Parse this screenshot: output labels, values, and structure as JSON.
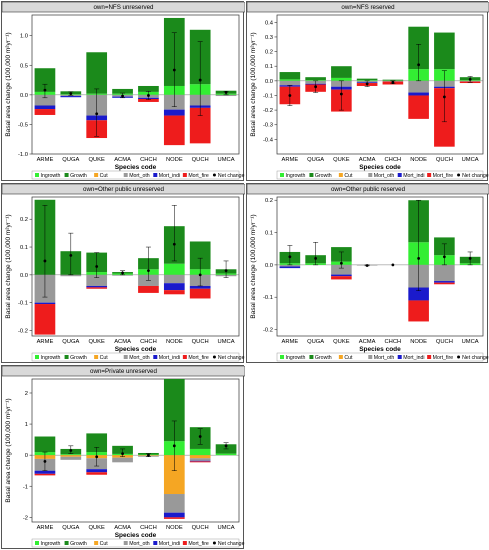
{
  "colors": {
    "Ingrowth": "#33ee33",
    "Growth": "#1b8a1b",
    "Cut": "#f5a623",
    "Mort_oth": "#999999",
    "Mort_indi": "#1a1acc",
    "Mort_fire": "#ee1c1c",
    "net": "#000000"
  },
  "chart_data": [
    {
      "type": "bar",
      "title": "own=NFS unreserved",
      "ylabel": "Basal area change (100,000 m²yr⁻¹)",
      "xlabel": "Species code",
      "ylim": [
        -1.0,
        1.35
      ],
      "yticks": [
        -1.0,
        -0.5,
        0.0,
        0.5,
        1.0
      ],
      "yticklabels": [
        "-1.0",
        "-0.5",
        "0.0",
        "0.5",
        "1.0"
      ],
      "categories": [
        "ARME",
        "QUGA",
        "QUKE",
        "ACMA",
        "CHCH",
        "NODE",
        "QUCH",
        "UMCA"
      ],
      "series": [
        {
          "name": "Ingrowth",
          "values": [
            0.05,
            0.01,
            0.02,
            0.02,
            0.05,
            0.15,
            0.18,
            0.02
          ]
        },
        {
          "name": "Growth",
          "values": [
            0.4,
            0.05,
            0.7,
            0.08,
            0.1,
            1.15,
            0.92,
            0.05
          ]
        },
        {
          "name": "Cut",
          "values": [
            0,
            0,
            0,
            0,
            0,
            0,
            0,
            0
          ]
        },
        {
          "name": "Mort_oth",
          "values": [
            -0.18,
            -0.02,
            -0.35,
            -0.03,
            -0.05,
            -0.25,
            -0.18,
            -0.02
          ]
        },
        {
          "name": "Mort_indi",
          "values": [
            -0.06,
            -0.02,
            -0.08,
            -0.02,
            -0.02,
            -0.1,
            -0.04,
            0
          ]
        },
        {
          "name": "Mort_fire",
          "values": [
            -0.1,
            0,
            -0.3,
            0,
            -0.05,
            -0.5,
            -0.6,
            0
          ]
        }
      ],
      "net": [
        0.08,
        0.02,
        -0.32,
        -0.02,
        -0.01,
        0.42,
        0.25,
        0.04
      ],
      "err": [
        [
          -0.05,
          0.18
        ],
        [
          -0.01,
          0.05
        ],
        [
          -0.7,
          0.1
        ],
        [
          -0.05,
          0.03
        ],
        [
          -0.08,
          0.06
        ],
        [
          -0.2,
          1.05
        ],
        [
          -0.35,
          0.9
        ],
        [
          0.0,
          0.06
        ]
      ]
    },
    {
      "type": "bar",
      "title": "own=NFS reserved",
      "ylabel": "Basal area change (100,000 m²yr⁻¹)",
      "xlabel": "Species code",
      "ylim": [
        -0.5,
        0.45
      ],
      "yticks": [
        -0.4,
        -0.3,
        -0.2,
        -0.1,
        0.0,
        0.1,
        0.2,
        0.3,
        0.4
      ],
      "yticklabels": [
        "-0.4",
        "-0.3",
        "-0.2",
        "-0.1",
        "0.0",
        "0.1",
        "0.2",
        "0.3",
        "0.4"
      ],
      "categories": [
        "ARME",
        "QUGA",
        "QUKE",
        "ACMA",
        "CHCH",
        "NODE",
        "QUCH",
        "UMCA"
      ],
      "series": [
        {
          "name": "Ingrowth",
          "values": [
            0.01,
            0.005,
            0.02,
            0.005,
            0.003,
            0.08,
            0.08,
            0.005
          ]
        },
        {
          "name": "Growth",
          "values": [
            0.05,
            0.02,
            0.08,
            0.01,
            0.005,
            0.29,
            0.25,
            0.02
          ]
        },
        {
          "name": "Cut",
          "values": [
            0,
            0,
            0,
            0,
            0,
            0,
            0,
            0
          ]
        },
        {
          "name": "Mort_oth",
          "values": [
            -0.03,
            -0.02,
            -0.04,
            -0.01,
            -0.005,
            -0.08,
            -0.04,
            -0.005
          ]
        },
        {
          "name": "Mort_indi",
          "values": [
            -0.01,
            -0.005,
            -0.02,
            -0.005,
            0,
            -0.02,
            -0.01,
            0
          ]
        },
        {
          "name": "Mort_fire",
          "values": [
            -0.12,
            -0.05,
            -0.15,
            -0.02,
            -0.02,
            -0.16,
            -0.4,
            -0.01
          ]
        }
      ],
      "net": [
        -0.1,
        -0.04,
        -0.09,
        -0.02,
        -0.01,
        0.11,
        -0.11,
        0.01
      ],
      "err": [
        [
          -0.17,
          -0.03
        ],
        [
          -0.08,
          0.0
        ],
        [
          -0.2,
          0.0
        ],
        [
          -0.04,
          0.0
        ],
        [
          -0.02,
          0.0
        ],
        [
          0.0,
          0.25
        ],
        [
          -0.28,
          0.07
        ],
        [
          -0.01,
          0.03
        ]
      ]
    },
    {
      "type": "bar",
      "title": "own=Other public unreserved",
      "ylabel": "Basal area change (100,000 m²yr⁻¹)",
      "xlabel": "Species code",
      "ylim": [
        -0.22,
        0.28
      ],
      "yticks": [
        -0.2,
        -0.1,
        0.0,
        0.1,
        0.2
      ],
      "yticklabels": [
        "-0.2",
        "-0.1",
        "0.0",
        "0.1",
        "0.2"
      ],
      "categories": [
        "ARME",
        "QUGA",
        "QUKE",
        "ACMA",
        "CHCH",
        "NODE",
        "QUCH",
        "UMCA"
      ],
      "series": [
        {
          "name": "Ingrowth",
          "values": [
            0.0,
            0.0,
            0.01,
            0.005,
            0.02,
            0.04,
            0.02,
            0.005
          ]
        },
        {
          "name": "Growth",
          "values": [
            0.27,
            0.085,
            0.07,
            0.005,
            0.04,
            0.135,
            0.1,
            0.015
          ]
        },
        {
          "name": "Cut",
          "values": [
            0,
            0,
            0,
            0,
            0,
            0,
            0,
            0
          ]
        },
        {
          "name": "Mort_oth",
          "values": [
            -0.1,
            -0.005,
            -0.04,
            -0.003,
            -0.04,
            -0.03,
            -0.04,
            -0.005
          ]
        },
        {
          "name": "Mort_indi",
          "values": [
            -0.005,
            0,
            -0.005,
            0,
            0,
            -0.025,
            -0.01,
            0
          ]
        },
        {
          "name": "Mort_fire",
          "values": [
            -0.11,
            0,
            -0.005,
            0,
            -0.025,
            -0.015,
            -0.035,
            0
          ]
        }
      ],
      "net": [
        0.05,
        0.07,
        0.03,
        0.007,
        0.015,
        0.11,
        0.0,
        0.015
      ],
      "err": [
        [
          -0.08,
          0.25
        ],
        [
          0.0,
          0.15
        ],
        [
          -0.01,
          0.08
        ],
        [
          0.0,
          0.015
        ],
        [
          -0.02,
          0.1
        ],
        [
          0.05,
          0.25
        ],
        [
          -0.04,
          0.06
        ],
        [
          -0.01,
          0.05
        ]
      ]
    },
    {
      "type": "bar",
      "title": "own=Other public reserved",
      "ylabel": "Basal area change (100,000 m²yr⁻¹)",
      "xlabel": "Species code",
      "ylim": [
        -0.22,
        0.21
      ],
      "yticks": [
        -0.2,
        -0.1,
        0.0,
        0.1,
        0.2
      ],
      "yticklabels": [
        "-0.2",
        "-0.1",
        "0.0",
        "0.1",
        "0.2"
      ],
      "categories": [
        "ARME",
        "QUGA",
        "QUKE",
        "ACMA",
        "CHCH",
        "NODE",
        "QUCH",
        "UMCA"
      ],
      "series": [
        {
          "name": "Ingrowth",
          "values": [
            0.005,
            0.005,
            0.01,
            0.0,
            0,
            0.07,
            0.03,
            0.005
          ]
        },
        {
          "name": "Growth",
          "values": [
            0.035,
            0.025,
            0.045,
            0.0,
            0,
            0.13,
            0.055,
            0.02
          ]
        },
        {
          "name": "Cut",
          "values": [
            0,
            0,
            0,
            0,
            0,
            0,
            0,
            0
          ]
        },
        {
          "name": "Mort_oth",
          "values": [
            -0.005,
            0,
            -0.03,
            -0.002,
            0,
            -0.07,
            -0.05,
            0
          ]
        },
        {
          "name": "Mort_indi",
          "values": [
            -0.005,
            0,
            -0.005,
            0,
            0,
            -0.04,
            -0.005,
            0
          ]
        },
        {
          "name": "Mort_fire",
          "values": [
            0,
            0,
            -0.01,
            0,
            0,
            -0.065,
            -0.005,
            0
          ]
        }
      ],
      "net": [
        0.025,
        0.02,
        0.005,
        -0.002,
        0,
        0.02,
        0.025,
        0.02
      ],
      "err": [
        [
          0.0,
          0.06
        ],
        [
          0.0,
          0.07
        ],
        [
          -0.01,
          0.04
        ],
        [
          -0.003,
          0.0
        ],
        [
          0,
          0
        ],
        [
          -0.08,
          0.2
        ],
        [
          0.0,
          0.065
        ],
        [
          0.0,
          0.04
        ]
      ]
    },
    {
      "type": "bar",
      "title": "own=Private unreserved",
      "ylabel": "Basal area change (100,000 m²yr⁻¹)",
      "xlabel": "Species code",
      "ylim": [
        -2.15,
        2.45
      ],
      "yticks": [
        -2,
        -1,
        0,
        1,
        2
      ],
      "yticklabels": [
        "-2",
        "-1",
        "0",
        "1",
        "2"
      ],
      "categories": [
        "ARME",
        "QUGA",
        "QUKE",
        "ACMA",
        "CHCH",
        "NODE",
        "QUCH",
        "UMCA"
      ],
      "series": [
        {
          "name": "Ingrowth",
          "values": [
            0.1,
            0.03,
            0.1,
            0.04,
            0.02,
            0.45,
            0.2,
            0.05
          ]
        },
        {
          "name": "Growth",
          "values": [
            0.5,
            0.17,
            0.6,
            0.26,
            0.05,
            2.0,
            0.7,
            0.3
          ]
        },
        {
          "name": "Cut",
          "values": [
            -0.12,
            -0.05,
            -0.1,
            -0.08,
            -0.02,
            -1.25,
            -0.1,
            0
          ]
        },
        {
          "name": "Mort_oth",
          "values": [
            -0.38,
            -0.1,
            -0.35,
            -0.15,
            -0.03,
            -0.6,
            -0.08,
            0
          ]
        },
        {
          "name": "Mort_indi",
          "values": [
            -0.1,
            0,
            -0.1,
            0,
            0,
            -0.15,
            -0.02,
            0
          ]
        },
        {
          "name": "Mort_fire",
          "values": [
            -0.05,
            0,
            -0.08,
            0,
            0,
            -0.05,
            -0.03,
            0
          ]
        }
      ],
      "net": [
        -0.2,
        0.15,
        -0.05,
        0.05,
        0.0,
        0.3,
        0.6,
        0.3
      ],
      "err": [
        [
          -0.5,
          0.1
        ],
        [
          0.05,
          0.3
        ],
        [
          -0.35,
          0.25
        ],
        [
          -0.05,
          0.2
        ],
        [
          -0.05,
          0.05
        ],
        [
          -0.5,
          1.1
        ],
        [
          0.35,
          0.85
        ],
        [
          0.2,
          0.4
        ]
      ]
    }
  ]
}
